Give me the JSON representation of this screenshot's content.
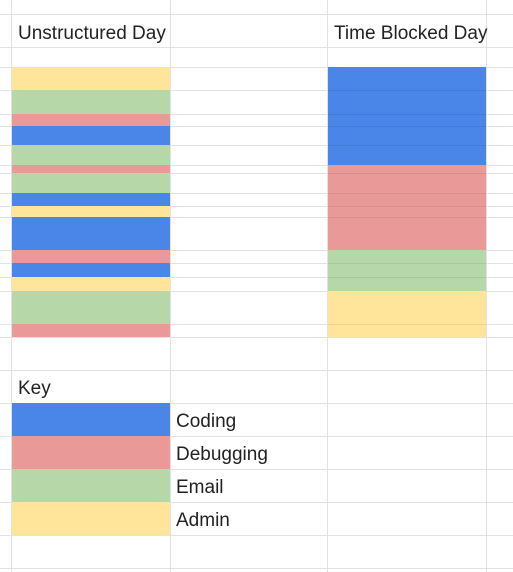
{
  "sheet": {
    "headers": {
      "unstructured": "Unstructured Day",
      "time_blocked": "Time Blocked Day"
    },
    "colors": {
      "coding": "#4a86e8",
      "debugging": "#ea9999",
      "email": "#b6d7a8",
      "admin": "#ffe599"
    },
    "unstructured_day": [
      {
        "category": "admin"
      },
      {
        "category": "email"
      },
      {
        "category": "debugging"
      },
      {
        "category": "coding"
      },
      {
        "category": "email"
      },
      {
        "category": "debugging"
      },
      {
        "category": "email"
      },
      {
        "category": "coding"
      },
      {
        "category": "admin"
      },
      {
        "category": "coding"
      },
      {
        "category": "debugging"
      },
      {
        "category": "coding"
      },
      {
        "category": "admin"
      },
      {
        "category": "email"
      },
      {
        "category": "debugging"
      }
    ],
    "time_blocked_day": [
      {
        "category": "coding"
      },
      {
        "category": "debugging"
      },
      {
        "category": "email"
      },
      {
        "category": "admin"
      }
    ],
    "key": {
      "title": "Key",
      "items": [
        {
          "category": "coding",
          "label": "Coding"
        },
        {
          "category": "debugging",
          "label": "Debugging"
        },
        {
          "category": "email",
          "label": "Email"
        },
        {
          "category": "admin",
          "label": "Admin"
        }
      ]
    }
  }
}
